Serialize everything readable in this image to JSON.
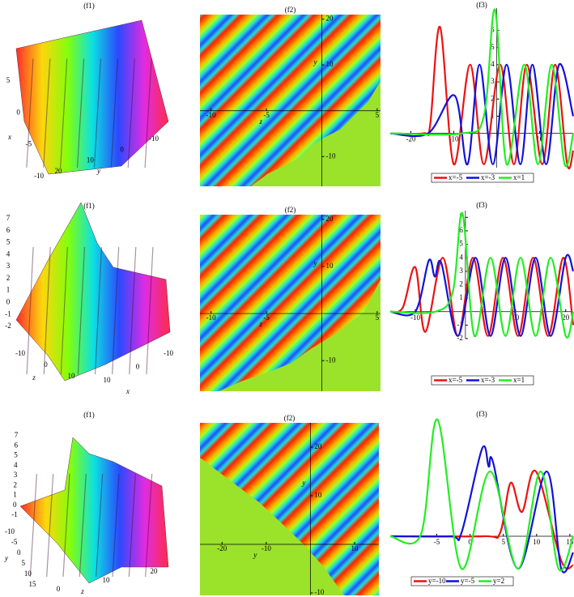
{
  "chart_data": [
    {
      "type": "surface",
      "title": "(f1)",
      "axes": [
        {
          "label": "x",
          "ticks": [
            -10,
            -5,
            0,
            5
          ]
        },
        {
          "label": "y",
          "ticks": [
            -10,
            0,
            10,
            20
          ]
        }
      ]
    },
    {
      "type": "density",
      "title": "(f2)",
      "xlabel": "z",
      "ylabel": "y",
      "xlim": [
        -11,
        5.3
      ],
      "ylim": [
        -16.5,
        21
      ],
      "xticks": [
        -10,
        -5,
        5
      ],
      "yticks": [
        -10,
        10,
        20
      ]
    },
    {
      "type": "line",
      "title": "(f3)",
      "xlim": [
        -24.8,
        17.8
      ],
      "ylim": [
        -2,
        7.3
      ],
      "xticks": [
        -20,
        -10,
        10
      ],
      "yticks": [
        1,
        2,
        3,
        4,
        5,
        6
      ],
      "series": [
        {
          "name": "x=-5",
          "color": "#ee1111",
          "x": [
            -24.8,
            -17,
            -15.5,
            -13.2,
            -10,
            -6.2,
            -3,
            0.8,
            4,
            7,
            10.6,
            13.6,
            16.4,
            17.8
          ],
          "values": [
            0,
            0,
            0.5,
            6.2,
            -1.8,
            4,
            -1.8,
            4,
            -1.8,
            4,
            -1.8,
            4,
            -1.8,
            -1
          ]
        },
        {
          "name": "x=-3",
          "color": "#1111dd",
          "x": [
            -24.8,
            -16,
            -9.8,
            -6.8,
            -4,
            -0.9,
            2.3,
            5.5,
            8.3,
            11.5,
            14.5,
            17.8
          ],
          "values": [
            0,
            0,
            2.2,
            -1.8,
            4,
            -1.8,
            4,
            -1.8,
            4,
            -1.8,
            4,
            1
          ]
        },
        {
          "name": "x=1",
          "color": "#22ee22",
          "x": [
            -24.8,
            -8,
            -3,
            -0.4,
            2.3,
            6.4,
            9.6,
            12.8,
            15.8,
            17.8
          ],
          "values": [
            0,
            0,
            1,
            7.2,
            -1.8,
            4,
            -1.8,
            4,
            -1.8,
            0
          ]
        }
      ]
    },
    {
      "type": "surface",
      "title": "(f1)",
      "axes": [
        {
          "ticks": [
            -2,
            -1,
            0,
            1,
            2,
            3,
            4,
            5,
            6,
            7
          ]
        },
        {
          "label": "z",
          "ticks": [
            -10,
            0,
            10
          ]
        },
        {
          "label": "x",
          "ticks": [
            -10,
            0,
            10
          ]
        }
      ]
    },
    {
      "type": "density",
      "title": "(f2)",
      "xlabel": "z",
      "ylabel": "y",
      "xlim": [
        -11,
        5.3
      ],
      "ylim": [
        -16.5,
        21
      ],
      "xticks": [
        -10,
        -5,
        5
      ],
      "yticks": [
        -10,
        10,
        20
      ]
    },
    {
      "type": "line",
      "title": "(f3)",
      "xlim": [
        -15,
        21.5
      ],
      "ylim": [
        -2,
        7.5
      ],
      "xticks": [
        -10,
        10,
        20
      ],
      "yticks": [
        -2,
        -1,
        1,
        2,
        3,
        4,
        5,
        6,
        7
      ],
      "series": [
        {
          "name": "x=-5",
          "color": "#ee1111",
          "x": [
            -15,
            -12.5,
            -10,
            -8,
            -4.5,
            -1.5,
            1.5,
            4.5,
            7.5,
            10.5,
            13.5,
            16.5,
            19.5,
            21.5
          ],
          "values": [
            0,
            0.3,
            3.3,
            -1.5,
            4,
            -1.8,
            4,
            -1.8,
            4,
            -1.8,
            4,
            -1.8,
            4,
            -1
          ]
        },
        {
          "name": "x=-3",
          "color": "#1111dd",
          "x": [
            -15,
            -10,
            -7.3,
            -6.1,
            -4.8,
            -1.5,
            2,
            5,
            8,
            11,
            14,
            17,
            20,
            21.5
          ],
          "values": [
            0,
            0,
            3.8,
            2.6,
            3.6,
            -1.8,
            4,
            -1.8,
            4,
            -1.8,
            4,
            -1.8,
            4,
            3
          ]
        },
        {
          "name": "x=1",
          "color": "#22ee22",
          "x": [
            -15,
            -6,
            -2.5,
            -0.6,
            1.8,
            5,
            8,
            11,
            14,
            17,
            20,
            21.5
          ],
          "values": [
            0,
            0,
            1.5,
            7.3,
            -1.8,
            4,
            -1.8,
            4,
            -1.8,
            4,
            -1.8,
            0
          ]
        }
      ]
    },
    {
      "type": "surface",
      "title": "(f1)",
      "axes": [
        {
          "ticks": [
            -1,
            0,
            1,
            2,
            3,
            4,
            5,
            6,
            7
          ]
        },
        {
          "label": "y",
          "ticks": [
            -10,
            -5,
            0,
            5,
            10,
            15
          ]
        },
        {
          "label": "z",
          "ticks": [
            0,
            10,
            20
          ]
        }
      ]
    },
    {
      "type": "density",
      "title": "(f2)",
      "xlabel": "y",
      "ylabel": "y",
      "xlim": [
        -25,
        15.5
      ],
      "ylim": [
        -10.5,
        25
      ],
      "xticks": [
        -20,
        -10,
        10
      ],
      "yticks": [
        -10,
        10,
        20
      ]
    },
    {
      "type": "line",
      "title": "(f3)",
      "xlim": [
        -12,
        15.5
      ],
      "ylim": [
        -2.3,
        7.5
      ],
      "xticks": [
        -5,
        0,
        5,
        10,
        15
      ],
      "yticks": [],
      "series": [
        {
          "name": "y=-10",
          "color": "#ee1111",
          "x": [
            -12,
            2,
            4.5,
            6.1,
            7.8,
            9.9,
            13.7,
            15.5
          ],
          "values": [
            0,
            0,
            0.2,
            3.3,
            1.5,
            4,
            -1.5,
            -1.8
          ]
        },
        {
          "name": "y=-5",
          "color": "#1111dd",
          "x": [
            -12,
            -3,
            -1.3,
            1.8,
            2.8,
            3.5,
            7.2,
            11.5,
            13.7,
            15.5
          ],
          "values": [
            0,
            0,
            0.2,
            5.4,
            4.3,
            4.5,
            -2,
            4,
            -2,
            -1
          ]
        },
        {
          "name": "y=2",
          "color": "#22ee22",
          "x": [
            -12,
            -7.4,
            -4.9,
            -1.3,
            3,
            7.2,
            10.6,
            13.3,
            15.5
          ],
          "values": [
            0,
            0.1,
            7.2,
            -2,
            4,
            -2,
            4,
            -2,
            0
          ]
        }
      ]
    }
  ]
}
